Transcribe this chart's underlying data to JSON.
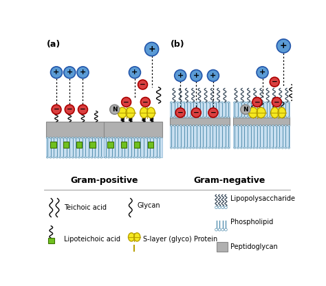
{
  "bg_color": "#ffffff",
  "blue_color": "#5b9bd5",
  "red_color": "#d94040",
  "yellow_color": "#f5e820",
  "yellow_edge": "#b8a000",
  "green_color": "#70c020",
  "green_edge": "#3a7000",
  "gray_color": "#b0b0b0",
  "gray_edge": "#888888",
  "mem_color": "#c8dff0",
  "mem_edge": "#7aabcc",
  "lps_color": "#445566",
  "text_color": "#000000",
  "label_a": "(a)",
  "label_b": "(b)",
  "label_gp": "Gram-positive",
  "label_gn": "Gram-negative",
  "legend_teichoic": "Teichoic acid",
  "legend_lipoteichoic": "Lipoteichoic acid",
  "legend_glycan": "Glycan",
  "legend_slayer": "S-layer (glyco) Protein",
  "legend_lps": "Lipopolysaccharide",
  "legend_phospholipid": "Phospholipid",
  "legend_peptido": "Peptidoglycan"
}
